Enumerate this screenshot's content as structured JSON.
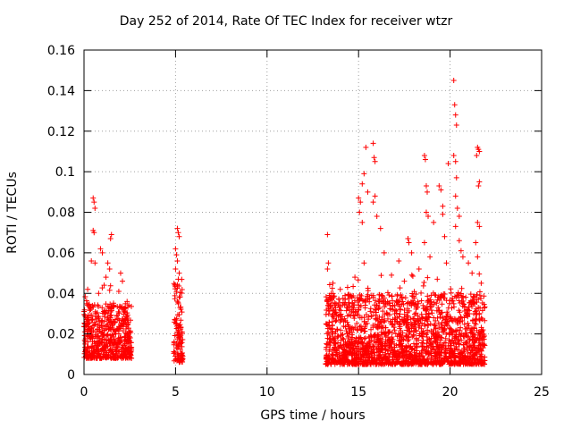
{
  "chart_data": {
    "type": "scatter",
    "title": "Day 252 of 2014, Rate Of TEC Index for receiver wtzr",
    "xlabel": "GPS time / hours",
    "ylabel": "ROTI / TECUs",
    "xlim": [
      0,
      25
    ],
    "ylim": [
      0,
      0.16
    ],
    "xticks": [
      0,
      5,
      10,
      15,
      20,
      25
    ],
    "yticks": [
      0,
      0.02,
      0.04,
      0.06,
      0.08,
      0.1,
      0.12,
      0.14,
      0.16
    ],
    "ytick_labels": [
      "0",
      "0.02",
      "0.04",
      "0.06",
      "0.08",
      "0.1",
      "0.12",
      "0.14",
      "0.16"
    ],
    "xtick_labels": [
      "0",
      "5",
      "10",
      "15",
      "20",
      "25"
    ],
    "grid": true,
    "marker": "+",
    "series": [
      {
        "name": "ROTI",
        "color": "#ff0000",
        "segments": [
          {
            "x_range": [
              0.0,
              2.6
            ],
            "typical_range": [
              0.008,
              0.035
            ],
            "outliers": [
              [
                0.5,
                0.087
              ],
              [
                0.55,
                0.085
              ],
              [
                0.6,
                0.082
              ],
              [
                0.5,
                0.071
              ],
              [
                0.55,
                0.07
              ],
              [
                0.4,
                0.056
              ],
              [
                0.6,
                0.055
              ],
              [
                0.9,
                0.062
              ],
              [
                1.0,
                0.06
              ],
              [
                1.5,
                0.069
              ],
              [
                1.45,
                0.067
              ],
              [
                1.3,
                0.055
              ],
              [
                1.4,
                0.052
              ],
              [
                1.2,
                0.048
              ],
              [
                1.1,
                0.044
              ],
              [
                2.0,
                0.05
              ],
              [
                2.1,
                0.046
              ],
              [
                0.2,
                0.042
              ],
              [
                1.9,
                0.041
              ],
              [
                0.8,
                0.04
              ]
            ]
          },
          {
            "x_range": [
              4.9,
              5.4
            ],
            "typical_range": [
              0.006,
              0.045
            ],
            "outliers": [
              [
                5.1,
                0.072
              ],
              [
                5.15,
                0.07
              ],
              [
                5.2,
                0.068
              ],
              [
                5.0,
                0.062
              ],
              [
                5.05,
                0.059
              ],
              [
                5.1,
                0.056
              ],
              [
                5.0,
                0.052
              ],
              [
                5.2,
                0.05
              ],
              [
                5.15,
                0.047
              ]
            ]
          },
          {
            "x_range": [
              13.2,
              21.9
            ],
            "typical_range": [
              0.005,
              0.04
            ],
            "outliers": [
              [
                13.3,
                0.069
              ],
              [
                13.35,
                0.055
              ],
              [
                13.3,
                0.052
              ],
              [
                15.0,
                0.087
              ],
              [
                15.1,
                0.085
              ],
              [
                15.05,
                0.08
              ],
              [
                15.2,
                0.075
              ],
              [
                15.4,
                0.112
              ],
              [
                15.8,
                0.114
              ],
              [
                15.85,
                0.107
              ],
              [
                15.9,
                0.105
              ],
              [
                15.9,
                0.088
              ],
              [
                15.8,
                0.085
              ],
              [
                16.0,
                0.078
              ],
              [
                15.3,
                0.099
              ],
              [
                15.2,
                0.094
              ],
              [
                15.5,
                0.09
              ],
              [
                15.3,
                0.055
              ],
              [
                16.2,
                0.072
              ],
              [
                16.4,
                0.06
              ],
              [
                17.2,
                0.056
              ],
              [
                17.7,
                0.067
              ],
              [
                17.75,
                0.065
              ],
              [
                17.9,
                0.06
              ],
              [
                18.3,
                0.052
              ],
              [
                18.6,
                0.108
              ],
              [
                18.65,
                0.106
              ],
              [
                18.7,
                0.093
              ],
              [
                18.75,
                0.09
              ],
              [
                18.7,
                0.08
              ],
              [
                18.8,
                0.078
              ],
              [
                18.6,
                0.065
              ],
              [
                18.9,
                0.058
              ],
              [
                19.1,
                0.075
              ],
              [
                19.4,
                0.093
              ],
              [
                19.5,
                0.091
              ],
              [
                19.6,
                0.083
              ],
              [
                19.6,
                0.079
              ],
              [
                19.7,
                0.068
              ],
              [
                19.8,
                0.055
              ],
              [
                19.9,
                0.104
              ],
              [
                20.2,
                0.145
              ],
              [
                20.25,
                0.133
              ],
              [
                20.3,
                0.128
              ],
              [
                20.35,
                0.123
              ],
              [
                20.2,
                0.108
              ],
              [
                20.3,
                0.105
              ],
              [
                20.35,
                0.097
              ],
              [
                20.3,
                0.088
              ],
              [
                20.4,
                0.082
              ],
              [
                20.5,
                0.078
              ],
              [
                20.3,
                0.073
              ],
              [
                20.5,
                0.066
              ],
              [
                20.6,
                0.061
              ],
              [
                20.7,
                0.058
              ],
              [
                21.0,
                0.055
              ],
              [
                21.5,
                0.112
              ],
              [
                21.55,
                0.111
              ],
              [
                21.6,
                0.11
              ],
              [
                21.45,
                0.108
              ],
              [
                21.6,
                0.095
              ],
              [
                21.55,
                0.093
              ],
              [
                21.5,
                0.075
              ],
              [
                21.6,
                0.073
              ],
              [
                21.4,
                0.065
              ],
              [
                21.5,
                0.058
              ],
              [
                13.6,
                0.045
              ],
              [
                14.0,
                0.042
              ],
              [
                14.4,
                0.043
              ],
              [
                14.8,
                0.048
              ],
              [
                16.8,
                0.049
              ],
              [
                17.5,
                0.046
              ],
              [
                19.3,
                0.047
              ],
              [
                21.2,
                0.05
              ],
              [
                21.7,
                0.045
              ]
            ]
          }
        ]
      }
    ]
  }
}
